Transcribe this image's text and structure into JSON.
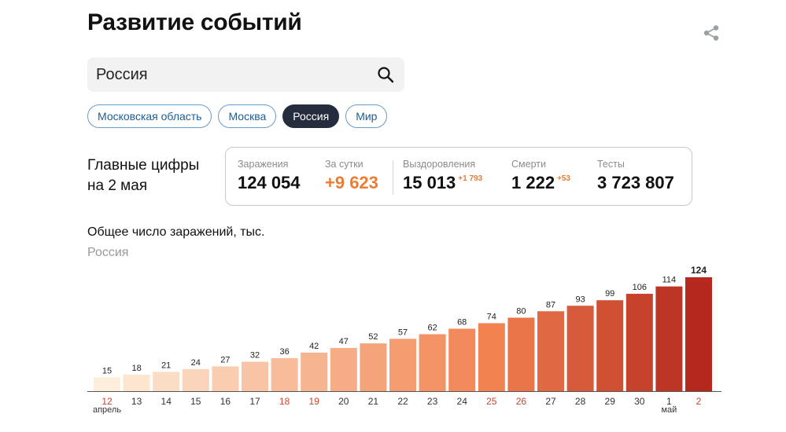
{
  "header": {
    "title": "Развитие событий"
  },
  "search": {
    "value": "Россия"
  },
  "chips": [
    {
      "label": "Московская область",
      "active": false
    },
    {
      "label": "Москва",
      "active": false
    },
    {
      "label": "Россия",
      "active": true
    },
    {
      "label": "Мир",
      "active": false
    }
  ],
  "summary": {
    "label_line1": "Главные цифры",
    "label_line2": "на 2 мая"
  },
  "stats": {
    "infections": {
      "label": "Заражения",
      "value": "124 054"
    },
    "daily": {
      "label": "За сутки",
      "value": "+9 623"
    },
    "recovered": {
      "label": "Выздоровления",
      "value": "15 013",
      "delta": "+1 793"
    },
    "deaths": {
      "label": "Смерти",
      "value": "1 222",
      "delta": "+53"
    },
    "tests": {
      "label": "Тесты",
      "value": "3 723 807"
    }
  },
  "colors": {
    "accent_orange": "#e97d33",
    "chip_active": "#242c3e",
    "chip_border": "#6a9bc4",
    "weekend_tick": "#c9452b",
    "bar_light": "#fdeedb",
    "bar_dark": "#b4281e"
  },
  "chart_data": {
    "type": "bar",
    "title": "Общее число заражений, тыс.",
    "subtitle": "Россия",
    "categories": [
      "12",
      "13",
      "14",
      "15",
      "16",
      "17",
      "18",
      "19",
      "20",
      "21",
      "22",
      "23",
      "24",
      "25",
      "26",
      "27",
      "28",
      "29",
      "30",
      "1",
      "2"
    ],
    "month_labels": [
      {
        "category_index": 0,
        "label": "апрель"
      },
      {
        "category_index": 19,
        "label": "май"
      }
    ],
    "weekend_indices": [
      0,
      6,
      7,
      13,
      14,
      20
    ],
    "values": [
      15,
      18,
      21,
      24,
      27,
      32,
      36,
      42,
      47,
      52,
      57,
      62,
      68,
      74,
      80,
      87,
      93,
      99,
      106,
      114,
      124
    ],
    "ylim": [
      0,
      124
    ],
    "grid": false,
    "xlabel": "",
    "ylabel": ""
  }
}
